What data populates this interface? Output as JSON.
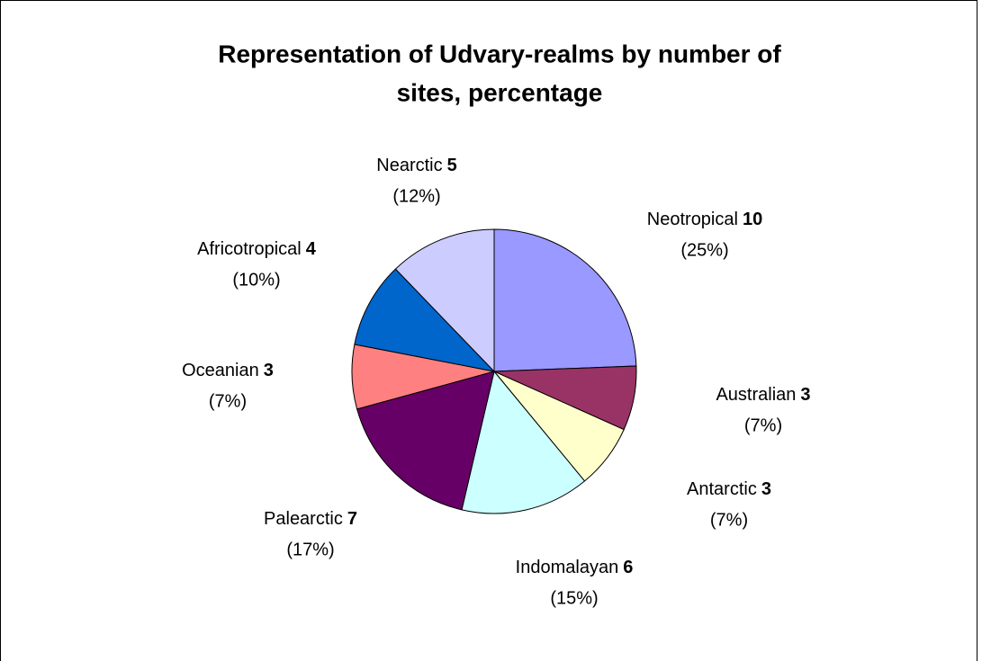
{
  "chart_data": {
    "type": "pie",
    "title_lines": [
      "Representation of Udvary-realms by number of",
      "sites, percentage"
    ],
    "categories": [
      "Neotropical",
      "Australian",
      "Antarctic",
      "Indomalayan",
      "Palearctic",
      "Oceanian",
      "Africotropical",
      "Nearctic"
    ],
    "values": [
      10,
      3,
      3,
      6,
      7,
      3,
      4,
      5
    ],
    "percentages": [
      25,
      7,
      7,
      15,
      17,
      7,
      10,
      12
    ],
    "percent_labels": [
      "(25%)",
      "(7%)",
      "(7%)",
      "(15%)",
      "(17%)",
      "(7%)",
      "(10%)",
      "(12%)"
    ],
    "colors": [
      "#9999ff",
      "#993366",
      "#ffffcc",
      "#ccffff",
      "#660066",
      "#ff8080",
      "#0066cc",
      "#ccccff"
    ]
  }
}
